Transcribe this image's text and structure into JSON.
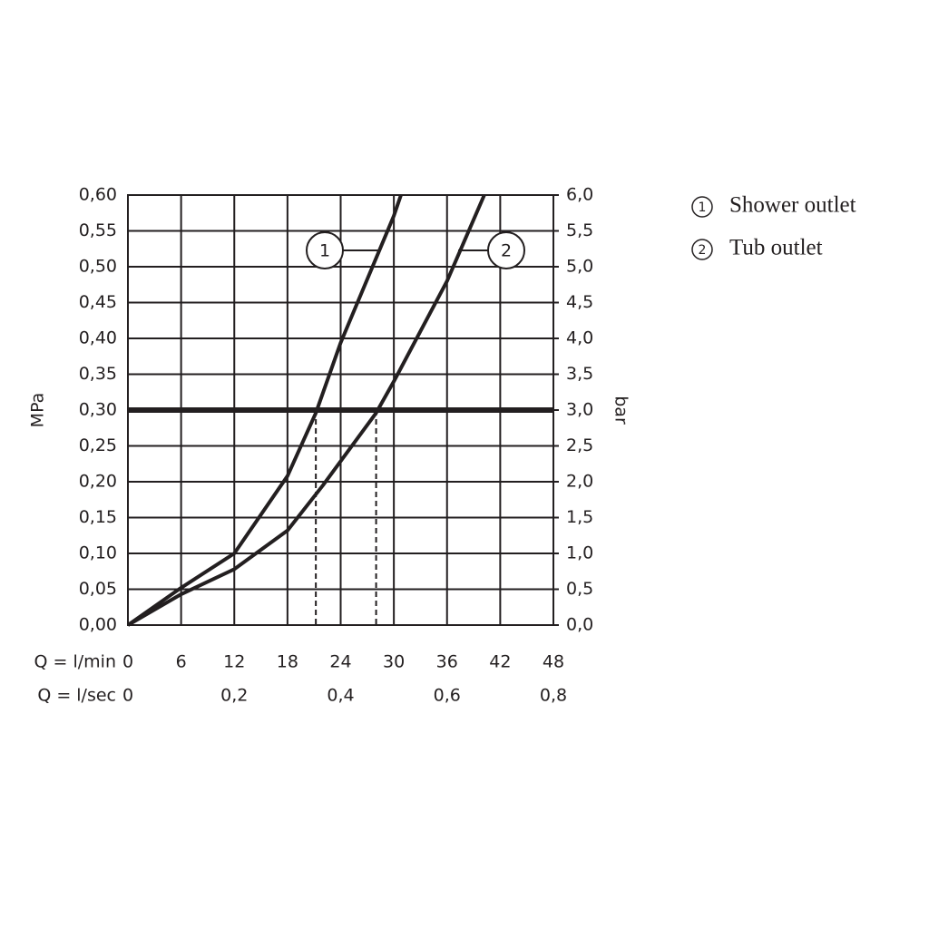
{
  "chart_data": {
    "type": "line",
    "ylabel": "MPa",
    "y2label": "bar",
    "xlabel": "Q = l/min",
    "x2label": "Q = l/sec",
    "xlim": [
      0,
      48
    ],
    "xticks": [
      0,
      6,
      12,
      18,
      24,
      30,
      36,
      42,
      48
    ],
    "x2lim": [
      0,
      0.8
    ],
    "x2ticks": [
      0,
      {
        "value": 0.2,
        "label": "0,2"
      },
      {
        "value": 0.4,
        "label": "0,4"
      },
      {
        "value": 0.6,
        "label": "0,6"
      },
      {
        "value": 0.8,
        "label": "0,8"
      }
    ],
    "ylim": [
      0,
      0.6
    ],
    "yticks": [
      {
        "value": 0,
        "label": "0,00"
      },
      {
        "value": 0.05,
        "label": "0,05"
      },
      {
        "value": 0.1,
        "label": "0,10"
      },
      {
        "value": 0.15,
        "label": "0,15"
      },
      {
        "value": 0.2,
        "label": "0,20"
      },
      {
        "value": 0.25,
        "label": "0,25"
      },
      {
        "value": 0.3,
        "label": "0,30"
      },
      {
        "value": 0.35,
        "label": "0,35"
      },
      {
        "value": 0.4,
        "label": "0,40"
      },
      {
        "value": 0.45,
        "label": "0,45"
      },
      {
        "value": 0.5,
        "label": "0,50"
      },
      {
        "value": 0.55,
        "label": "0,55"
      },
      {
        "value": 0.6,
        "label": "0,60"
      }
    ],
    "y2lim": [
      0,
      6
    ],
    "y2ticks": [
      {
        "value": 0,
        "label": "0,0"
      },
      {
        "value": 0.5,
        "label": "0,5"
      },
      {
        "value": 1,
        "label": "1,0"
      },
      {
        "value": 1.5,
        "label": "1,5"
      },
      {
        "value": 2,
        "label": "2,0"
      },
      {
        "value": 2.5,
        "label": "2,5"
      },
      {
        "value": 3,
        "label": "3,0"
      },
      {
        "value": 3.5,
        "label": "3,5"
      },
      {
        "value": 4,
        "label": "4,0"
      },
      {
        "value": 4.5,
        "label": "4,5"
      },
      {
        "value": 5,
        "label": "5,0"
      },
      {
        "value": 5.5,
        "label": "5,5"
      },
      {
        "value": 6,
        "label": "6,0"
      }
    ],
    "grid": true,
    "reference_y": 0.3,
    "drop_lines_x": [
      21.2,
      28
    ],
    "series": [
      {
        "name": "Shower outlet",
        "label": "1",
        "color": "#231f20",
        "x": [
          0,
          6,
          12,
          14.5,
          18,
          21.2,
          24,
          30,
          30.8
        ],
        "values": [
          0,
          0.052,
          0.1,
          0.145,
          0.208,
          0.296,
          0.394,
          0.571,
          0.6
        ]
      },
      {
        "name": "Tub outlet",
        "label": "2",
        "color": "#231f20",
        "x": [
          0,
          6,
          12,
          18,
          22,
          28,
          30,
          36,
          40.2
        ],
        "values": [
          0,
          0.043,
          0.078,
          0.132,
          0.195,
          0.296,
          0.34,
          0.48,
          0.6
        ]
      }
    ]
  }
}
